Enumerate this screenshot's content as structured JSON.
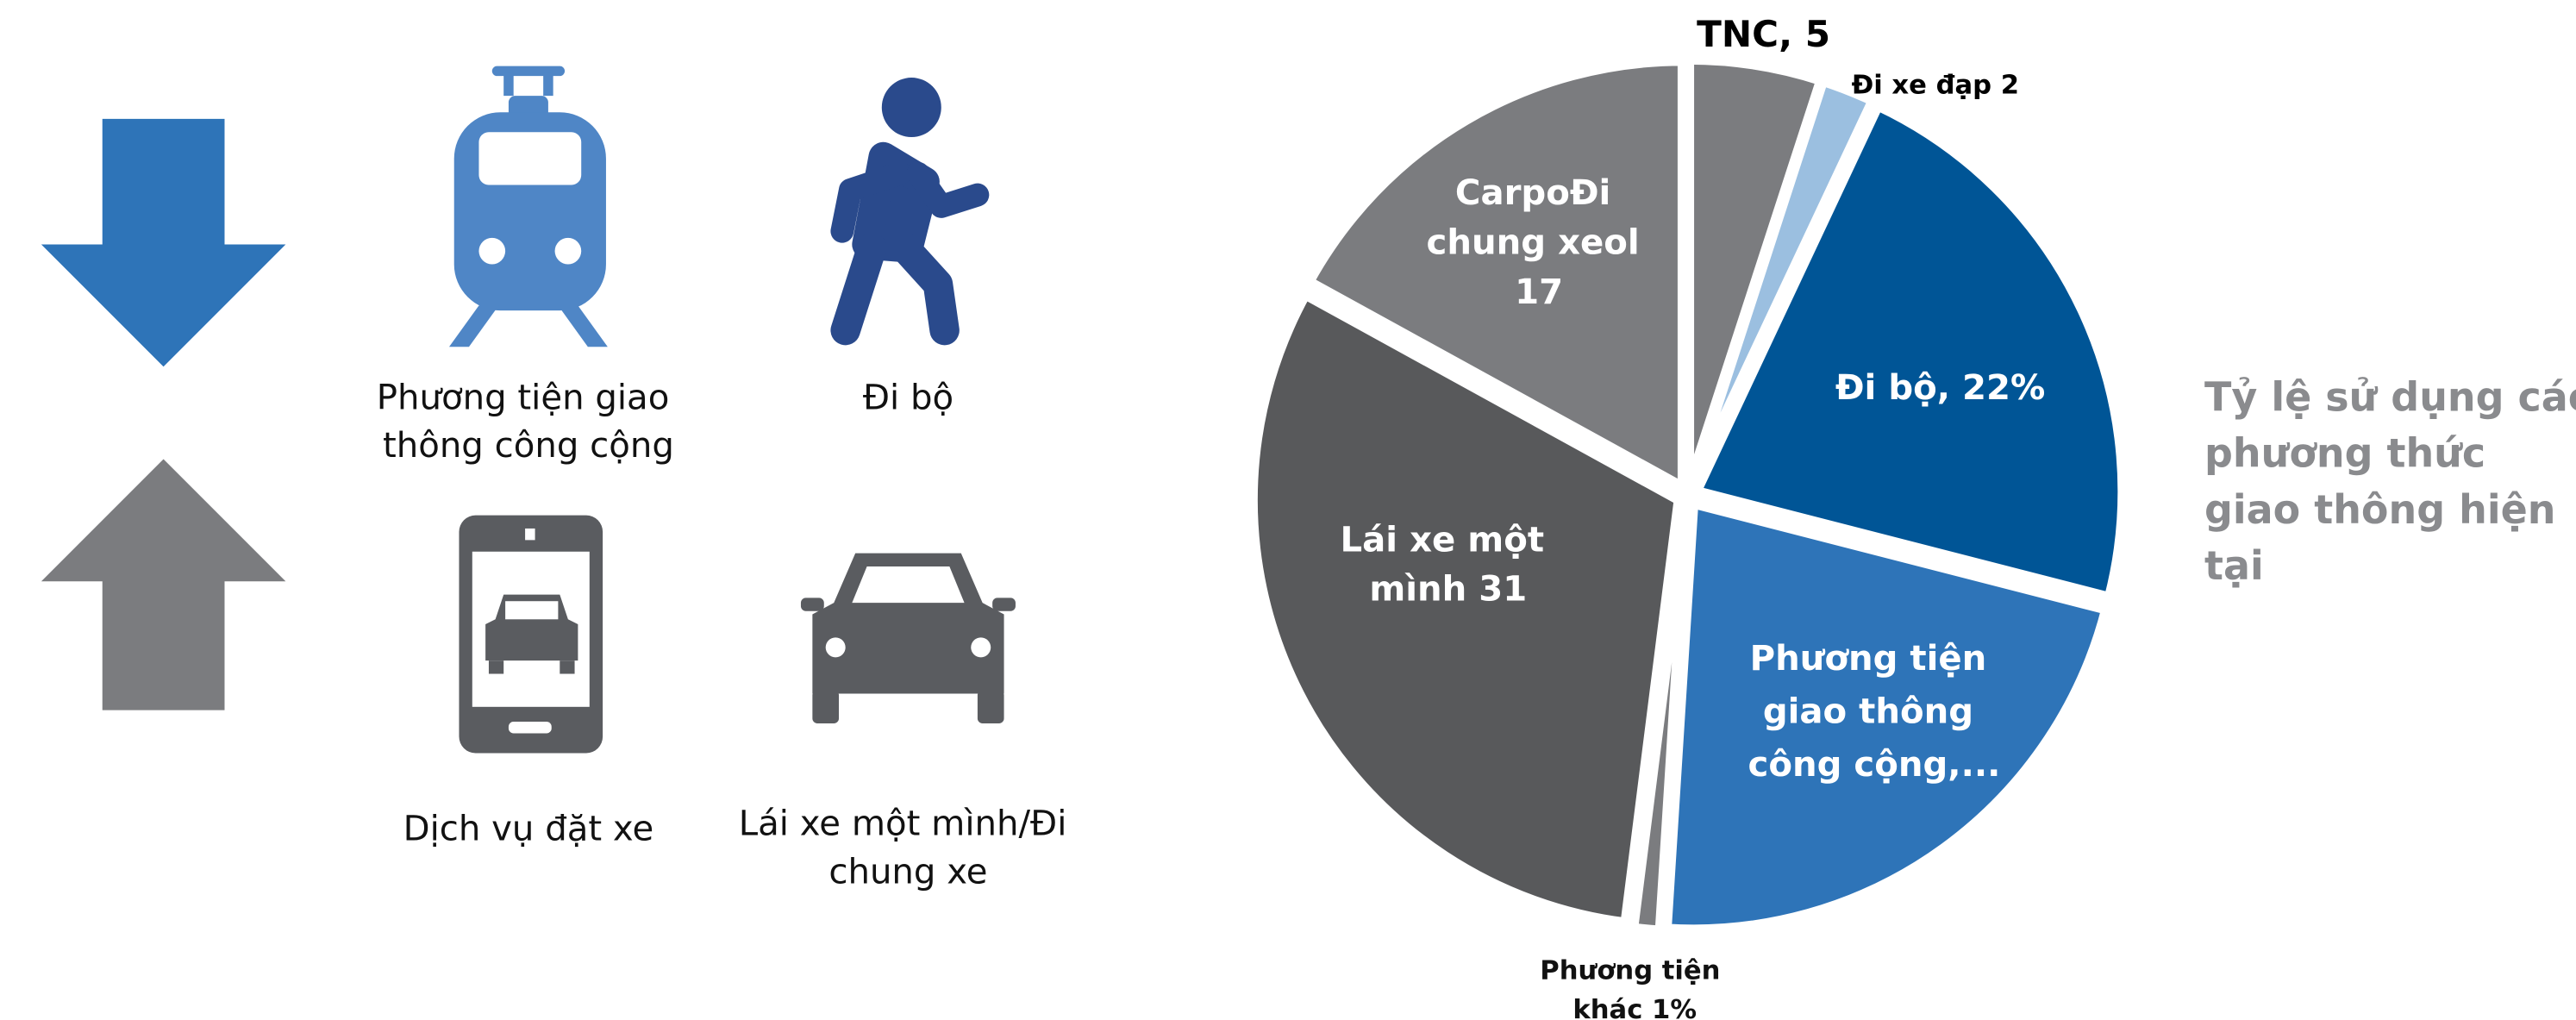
{
  "icons": [
    {
      "label": "Phương tiện giao thông công cộng"
    },
    {
      "label": "Đi bộ"
    },
    {
      "label": "Dịch vụ đặt xe"
    },
    {
      "label": "Lái xe một mình/Đi chung xe"
    }
  ],
  "chart_data": {
    "type": "pie",
    "values": [
      5,
      2,
      22,
      22,
      1,
      31,
      17
    ],
    "value_labels": [
      "TNC, 5",
      "Đi xe đạp 2",
      "Đi bộ, 22%",
      "Phương tiện giao thông công cộng,...",
      "Phương tiện khác 1%",
      "Lái xe một mình 31",
      "CarpoĐi chung xeol 17"
    ],
    "colors": [
      "#7b7c7f",
      "#9bbfe0",
      "#005596",
      "#2e74b8",
      "#7b7c7f",
      "#58595b",
      "#7b7c7f"
    ],
    "caption": "Tỷ lệ sử dụng các phương thức giao thông hiện tại"
  }
}
